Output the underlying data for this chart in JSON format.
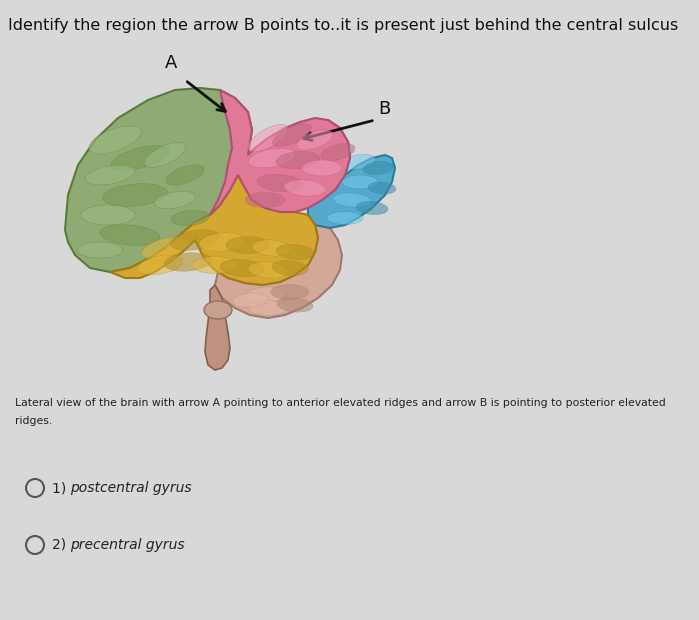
{
  "bg_color": "#d8d8d8",
  "title": "Identify the region the arrow B points to..it is present just behind the central sulcus",
  "title_fontsize": 11.5,
  "title_color": "#111111",
  "caption_line1": "Lateral view of the brain with arrow A pointing to anterior elevated ridges and arrow B is pointing to posterior elevated",
  "caption_line2": "ridges.",
  "caption_fontsize": 7.8,
  "caption_color": "#222222",
  "option1_num": "1) ",
  "option1_text": "postcentral gyrus",
  "option2_num": "2) ",
  "option2_text": "precentral gyrus",
  "option_fontsize": 10,
  "option_color": "#222222",
  "green_color": "#8faa72",
  "green_dark": "#5a7a3a",
  "green_mid": "#7a9a58",
  "pink_color": "#e07898",
  "pink_dark": "#b05070",
  "pink_mid": "#c86888",
  "teal_color": "#55aacc",
  "teal_dark": "#2a7a9a",
  "teal_mid": "#3a9ab8",
  "yellow_color": "#d4a830",
  "yellow_dark": "#a07818",
  "yellow_mid": "#c09020",
  "peach_color": "#d4a898",
  "peach_dark": "#a07868",
  "brainstem_color": "#c09080",
  "arrow_color": "#111111"
}
